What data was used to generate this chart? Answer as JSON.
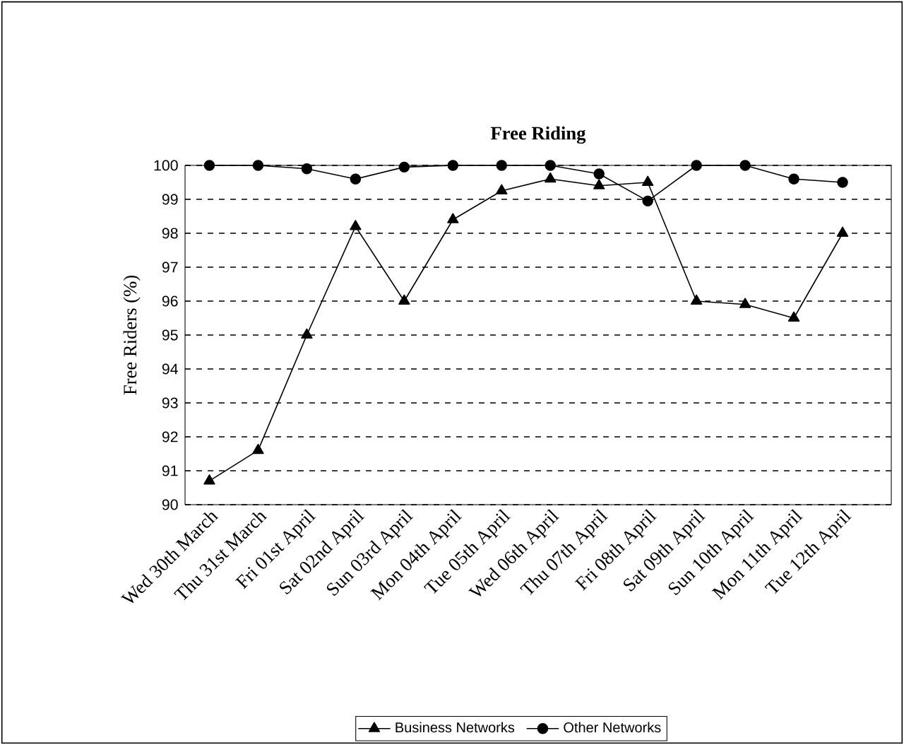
{
  "chart_data": {
    "type": "line",
    "title": "Free Riding",
    "ylabel": "Free Riders (%)",
    "categories": [
      "Wed 30th March",
      "Thu 31st March",
      "Fri 01st April",
      "Sat 02nd April",
      "Sun 03rd April",
      "Mon 04th April",
      "Tue 05th April",
      "Wed 06th April",
      "Thu 07th April",
      "Fri 08th April",
      "Sat 09th April",
      "Sun 10th April",
      "Mon 11th April",
      "Tue 12th April"
    ],
    "series": [
      {
        "name": "Business Networks",
        "color": "#000000",
        "marker": "triangle",
        "values": [
          90.7,
          91.6,
          95.0,
          98.2,
          96.0,
          98.4,
          99.25,
          99.6,
          99.4,
          99.5,
          96.0,
          95.9,
          95.5,
          98.0
        ]
      },
      {
        "name": "Other Networks",
        "color": "#000000",
        "marker": "circle",
        "values": [
          100,
          100,
          99.9,
          99.6,
          99.95,
          100,
          100,
          100,
          99.75,
          98.95,
          100,
          100,
          99.6,
          99.5
        ]
      }
    ],
    "ylim": [
      90,
      100
    ],
    "yticks": [
      90,
      91,
      92,
      93,
      94,
      95,
      96,
      97,
      98,
      99,
      100
    ],
    "grid": "y",
    "legend": "bottom",
    "line_style": "solid"
  }
}
